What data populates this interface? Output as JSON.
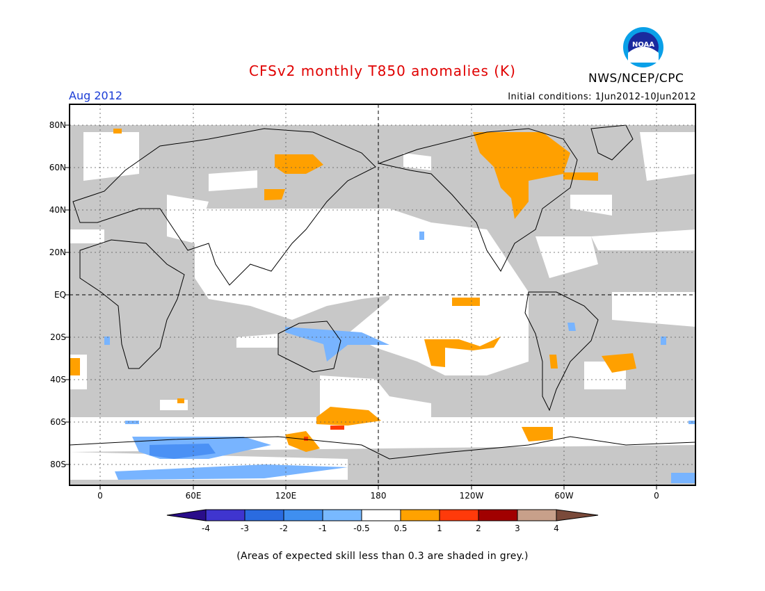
{
  "header": {
    "title": "CFSv2 monthly T850 anomalies (K)",
    "agency": "NWS/NCEP/CPC",
    "logo_text": "NOAA",
    "target_month": "Aug 2012",
    "initial_conditions": "Initial conditions: 1Jun2012-10Jun2012"
  },
  "map": {
    "lat_labels": [
      "80N",
      "60N",
      "40N",
      "20N",
      "EQ",
      "20S",
      "40S",
      "60S",
      "80S"
    ],
    "lon_labels": [
      "0",
      "60E",
      "120E",
      "180",
      "120W",
      "60W",
      "0"
    ],
    "colors": {
      "grey_low_skill": "#c8c8c8",
      "ocean_land_no_signal": "#ffffff",
      "warm_05_1": "#ffa000",
      "warm_1_2": "#ff3b00",
      "cool_m1_m05": "#78b4ff",
      "cool_m2_m1": "#4b91f5"
    }
  },
  "colorbar": {
    "labels": [
      "-4",
      "-3",
      "-2",
      "-1",
      "-0.5",
      "0.5",
      "1",
      "2",
      "3",
      "4"
    ],
    "colors": [
      "#2a0d8a",
      "#3f35cf",
      "#2a6be0",
      "#3f8ff0",
      "#78b9ff",
      "#ffffff",
      "#ffa200",
      "#ff3a0a",
      "#a10000",
      "#c8a08a",
      "#7a4a3a"
    ]
  },
  "footnote": "(Areas of expected skill less than 0.3 are shaded in grey.)"
}
